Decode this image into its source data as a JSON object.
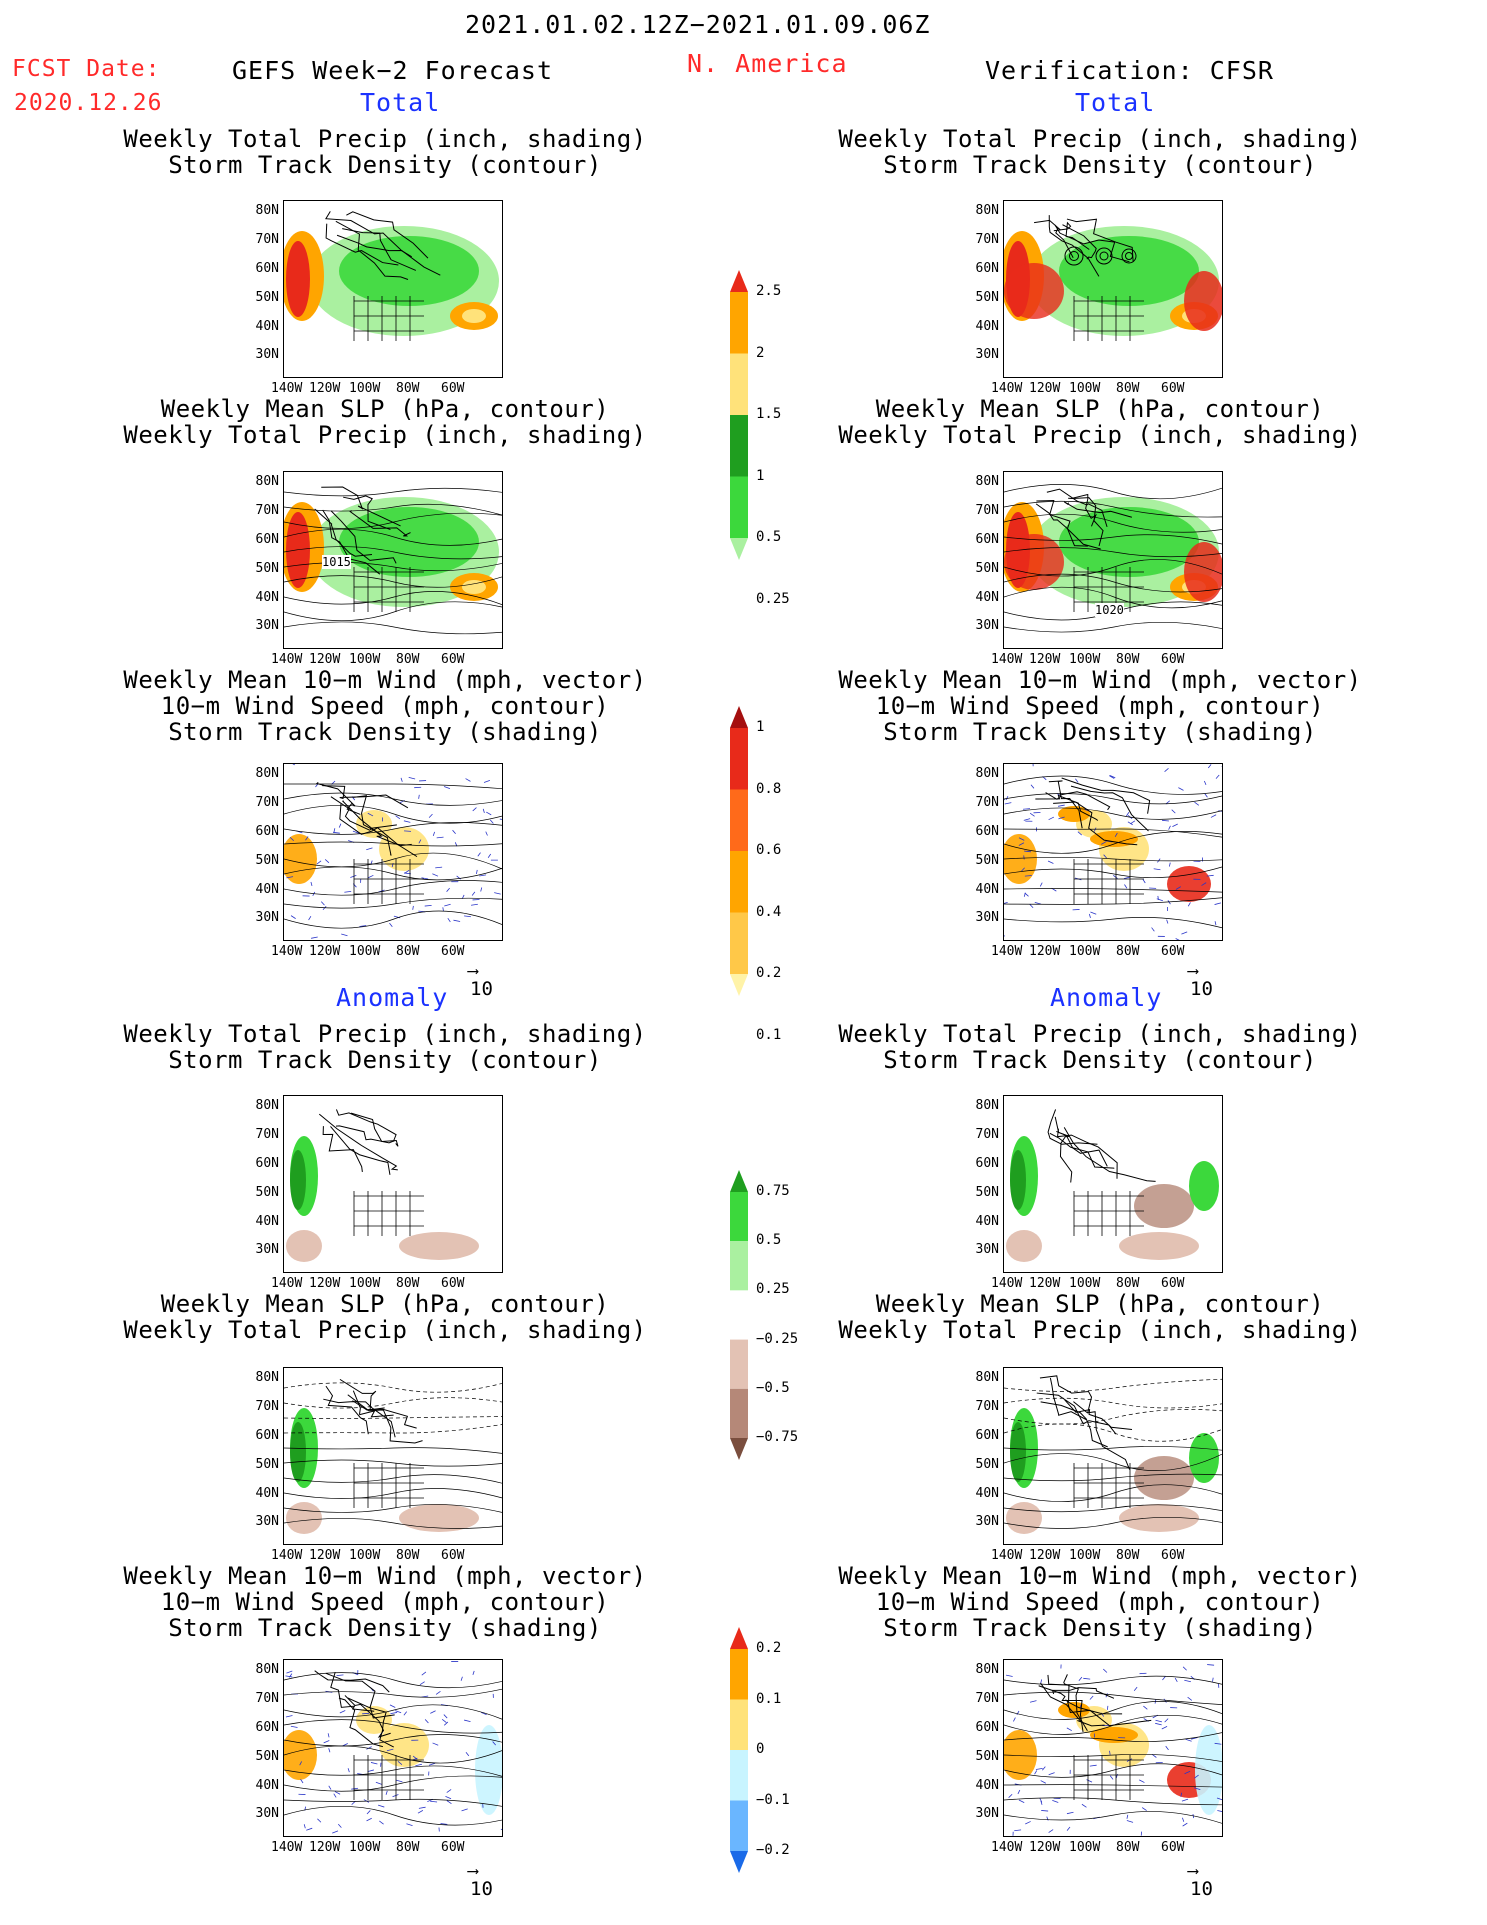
{
  "header": {
    "date_range": "2021.01.02.12Z−2021.01.09.06Z",
    "fcst_label": "FCST Date:",
    "fcst_date": "2020.12.26",
    "forecast_title": "GEFS Week−2 Forecast",
    "region": "N. America",
    "verification": "Verification: CFSR"
  },
  "sections": {
    "total": "Total",
    "anomaly": "Anomaly"
  },
  "titles": {
    "precip_track": [
      "Weekly Total Precip (inch, shading)",
      "Storm Track Density (contour)"
    ],
    "slp_precip": [
      "Weekly Mean SLP (hPa, contour)",
      "Weekly Total Precip (inch, shading)"
    ],
    "wind_track": [
      "Weekly Mean 10−m Wind (mph, vector)",
      "10−m Wind Speed (mph, contour)",
      "Storm Track Density (shading)"
    ]
  },
  "axes": {
    "lat_labels": [
      "80N",
      "70N",
      "60N",
      "50N",
      "40N",
      "30N"
    ],
    "lon_labels": [
      "140W",
      "120W",
      "100W",
      "80W",
      "60W"
    ]
  },
  "vector_ref": "10",
  "contour_labels": {
    "slp_total_fcst": "1015",
    "slp_total_ver": "1020"
  },
  "colorbars": {
    "precip_total": {
      "labels": [
        "2.5",
        "2",
        "1.5",
        "1",
        "0.5",
        "0.25"
      ],
      "colors": [
        "#e82a1a",
        "#ffa500",
        "#ffe27a",
        "#1f9e1f",
        "#3cd83c",
        "#aaf0a0"
      ]
    },
    "track_total": {
      "labels": [
        "1",
        "0.8",
        "0.6",
        "0.4",
        "0.2",
        "0.1"
      ],
      "colors": [
        "#a50f0f",
        "#e82a1a",
        "#ff6a1a",
        "#ffa500",
        "#ffc848",
        "#fff3a8"
      ]
    },
    "precip_anom": {
      "labels": [
        "0.75",
        "0.5",
        "0.25",
        "−0.25",
        "−0.5",
        "−0.75"
      ],
      "colors": [
        "#1f9e1f",
        "#3cd83c",
        "#aaf0a0",
        "#ffffff",
        "#e3c2b4",
        "#b58878",
        "#7a4e3e"
      ]
    },
    "track_anom": {
      "labels": [
        "0.2",
        "0.1",
        "0",
        "−0.1",
        "−0.2"
      ],
      "colors": [
        "#e82a1a",
        "#ffa500",
        "#ffe27a",
        "#c8f4ff",
        "#6ab6ff",
        "#1a6ae8"
      ]
    }
  }
}
